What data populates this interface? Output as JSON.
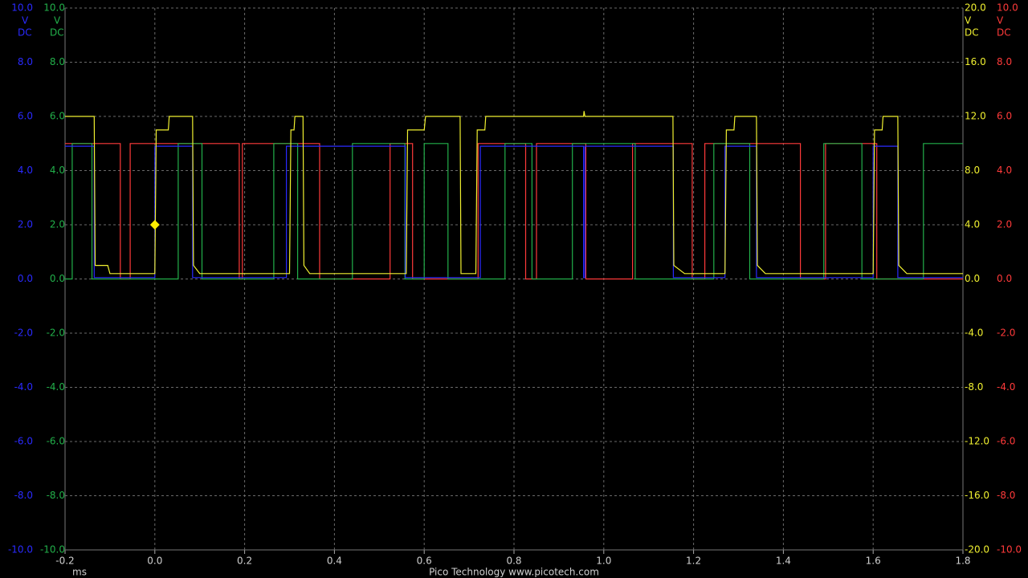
{
  "chart_data": {
    "type": "line",
    "xlabel": "ms",
    "footer": "Pico Technology   www.picotech.com",
    "grid": true,
    "xlim": [
      -0.2,
      1.8
    ],
    "xticks": [
      -0.2,
      {
        "value": 0,
        "label": "0.0"
      },
      0.2,
      0.4,
      0.6,
      0.8,
      {
        "value": 1,
        "label": "1.0"
      },
      1.2,
      1.4,
      1.6,
      1.8
    ],
    "axes": [
      {
        "side": "left",
        "color": "#2a2aff",
        "unit": "V",
        "coupling": "DC",
        "ylim": [
          -10,
          10
        ],
        "yticks": [
          {
            "value": -10,
            "label": "-10.0"
          },
          {
            "value": -8,
            "label": "-8.0"
          },
          {
            "value": -6,
            "label": "-6.0"
          },
          {
            "value": -4,
            "label": "-4.0"
          },
          {
            "value": -2,
            "label": "-2.0"
          },
          {
            "value": 0,
            "label": "0.0"
          },
          {
            "value": 2,
            "label": "2.0"
          },
          {
            "value": 4,
            "label": "4.0"
          },
          {
            "value": 6,
            "label": "6.0"
          },
          {
            "value": 8,
            "label": "8.0"
          },
          {
            "value": 10,
            "label": "10.0"
          }
        ]
      },
      {
        "side": "left",
        "color": "#22b04a",
        "unit": "V",
        "coupling": "DC",
        "ylim": [
          -10,
          10
        ],
        "yticks": [
          {
            "value": -10,
            "label": "-10.0"
          },
          {
            "value": -8,
            "label": "-8.0"
          },
          {
            "value": -6,
            "label": "-6.0"
          },
          {
            "value": -4,
            "label": "-4.0"
          },
          {
            "value": -2,
            "label": "-2.0"
          },
          {
            "value": 0,
            "label": "0.0"
          },
          {
            "value": 2,
            "label": "2.0"
          },
          {
            "value": 4,
            "label": "4.0"
          },
          {
            "value": 6,
            "label": "6.0"
          },
          {
            "value": 8,
            "label": "8.0"
          },
          {
            "value": 10,
            "label": "10.0"
          }
        ]
      },
      {
        "side": "right",
        "color": "#f0f030",
        "unit": "V",
        "coupling": "DC",
        "ylim": [
          -20,
          20
        ],
        "yticks": [
          {
            "value": -20,
            "label": "-20.0"
          },
          {
            "value": -16,
            "label": "-16.0"
          },
          {
            "value": -12,
            "label": "-12.0"
          },
          {
            "value": -8,
            "label": "-8.0"
          },
          {
            "value": -4,
            "label": "-4.0"
          },
          {
            "value": 0,
            "label": "0.0"
          },
          {
            "value": 4,
            "label": "4.0"
          },
          {
            "value": 8,
            "label": "8.0"
          },
          {
            "value": 12,
            "label": "12.0"
          },
          {
            "value": 16,
            "label": "16.0"
          },
          {
            "value": 20,
            "label": "20.0"
          }
        ]
      },
      {
        "side": "right",
        "color": "#ff3a3a",
        "unit": "V",
        "coupling": "DC",
        "ylim": [
          -10,
          10
        ],
        "yticks": [
          {
            "value": -10,
            "label": "-10.0"
          },
          {
            "value": -8,
            "label": "-8.0"
          },
          {
            "value": -6,
            "label": "-6.0"
          },
          {
            "value": -4,
            "label": "-4.0"
          },
          {
            "value": -2,
            "label": "-2.0"
          },
          {
            "value": 0,
            "label": "0.0"
          },
          {
            "value": 2,
            "label": "2.0"
          },
          {
            "value": 4,
            "label": "4.0"
          },
          {
            "value": 6,
            "label": "6.0"
          },
          {
            "value": 8,
            "label": "8.0"
          },
          {
            "value": 10,
            "label": "10.0"
          }
        ]
      }
    ],
    "series": [
      {
        "axis": 3,
        "color": "#ff3a3a",
        "x": [
          -0.2,
          -0.077,
          -0.077,
          -0.055,
          -0.055,
          0.188,
          0.188,
          0.195,
          0.195,
          0.367,
          0.367,
          0.524,
          0.524,
          0.574,
          0.574,
          0.72,
          0.72,
          0.826,
          0.826,
          0.85,
          0.85,
          0.96,
          0.96,
          1.064,
          1.064,
          1.197,
          1.197,
          1.225,
          1.225,
          1.438,
          1.438,
          1.494,
          1.494,
          1.608,
          1.608,
          1.8
        ],
        "values": [
          5,
          5,
          0,
          0,
          5,
          5,
          0,
          0,
          5,
          5,
          0,
          0,
          5,
          5,
          0,
          0,
          5,
          5,
          0,
          0,
          5,
          5,
          0,
          0,
          5,
          5,
          0,
          0,
          5,
          5,
          0,
          0,
          5,
          5,
          0,
          0
        ]
      },
      {
        "axis": 1,
        "color": "#22b04a",
        "x": [
          -0.2,
          -0.184,
          -0.184,
          -0.14,
          -0.14,
          0.052,
          0.052,
          0.105,
          0.105,
          0.265,
          0.265,
          0.318,
          0.318,
          0.44,
          0.44,
          0.557,
          0.557,
          0.6,
          0.6,
          0.653,
          0.653,
          0.78,
          0.78,
          0.84,
          0.84,
          0.93,
          0.93,
          1.07,
          1.07,
          1.245,
          1.245,
          1.325,
          1.325,
          1.49,
          1.49,
          1.575,
          1.575,
          1.712,
          1.712,
          1.8
        ],
        "values": [
          0,
          0,
          5,
          5,
          0,
          0,
          5,
          5,
          0,
          0,
          5,
          5,
          0,
          0,
          5,
          5,
          0,
          0,
          5,
          5,
          0,
          0,
          5,
          5,
          0,
          0,
          5,
          5,
          0,
          0,
          5,
          5,
          0,
          0,
          5,
          5,
          0,
          0,
          5,
          5
        ]
      },
      {
        "axis": 0,
        "color": "#2a2aff",
        "x": [
          -0.2,
          -0.135,
          -0.135,
          0,
          0,
          0.084,
          0.084,
          0.293,
          0.293,
          0.558,
          0.558,
          0.725,
          0.725,
          0.955,
          0.955,
          0.958,
          0.958,
          1.155,
          1.155,
          1.27,
          1.27,
          1.34,
          1.34,
          1.6,
          1.6,
          1.655,
          1.655,
          1.8
        ],
        "values": [
          4.9,
          4.9,
          0.05,
          0.05,
          4.9,
          4.9,
          0.05,
          0.05,
          4.9,
          4.9,
          0.05,
          0.05,
          4.9,
          4.9,
          0.05,
          0.05,
          4.9,
          4.9,
          0.05,
          0.05,
          4.9,
          4.9,
          0.05,
          0.05,
          4.9,
          4.9,
          0.05,
          0.05
        ]
      },
      {
        "axis": 2,
        "color": "#f0f030",
        "x": [
          -0.2,
          -0.135,
          -0.133,
          -0.105,
          -0.1,
          0,
          0.003,
          0.03,
          0.032,
          0.084,
          0.086,
          0.1,
          0.3,
          0.303,
          0.31,
          0.312,
          0.33,
          0.332,
          0.345,
          0.56,
          0.563,
          0.6,
          0.603,
          0.68,
          0.682,
          0.715,
          0.718,
          0.735,
          0.737,
          0.955,
          0.956,
          0.958,
          1.154,
          1.156,
          1.18,
          1.27,
          1.273,
          1.29,
          1.292,
          1.34,
          1.342,
          1.36,
          1.6,
          1.603,
          1.62,
          1.622,
          1.655,
          1.657,
          1.675,
          1.8
        ],
        "values": [
          12,
          12,
          1,
          1,
          0.4,
          0.4,
          11,
          11,
          12,
          12,
          1,
          0.4,
          0.4,
          11,
          11,
          12,
          12,
          1,
          0.4,
          0.4,
          11,
          11,
          12,
          12,
          0.4,
          0.4,
          11,
          11,
          12,
          12,
          12.4,
          12,
          12,
          1,
          0.4,
          0.4,
          11,
          11,
          12,
          12,
          1,
          0.4,
          0.4,
          11,
          11,
          12,
          12,
          1,
          0.4,
          0.4
        ]
      }
    ],
    "trigger": {
      "x": 0,
      "y": 2,
      "axis": 0,
      "color": "#ffee00"
    }
  }
}
